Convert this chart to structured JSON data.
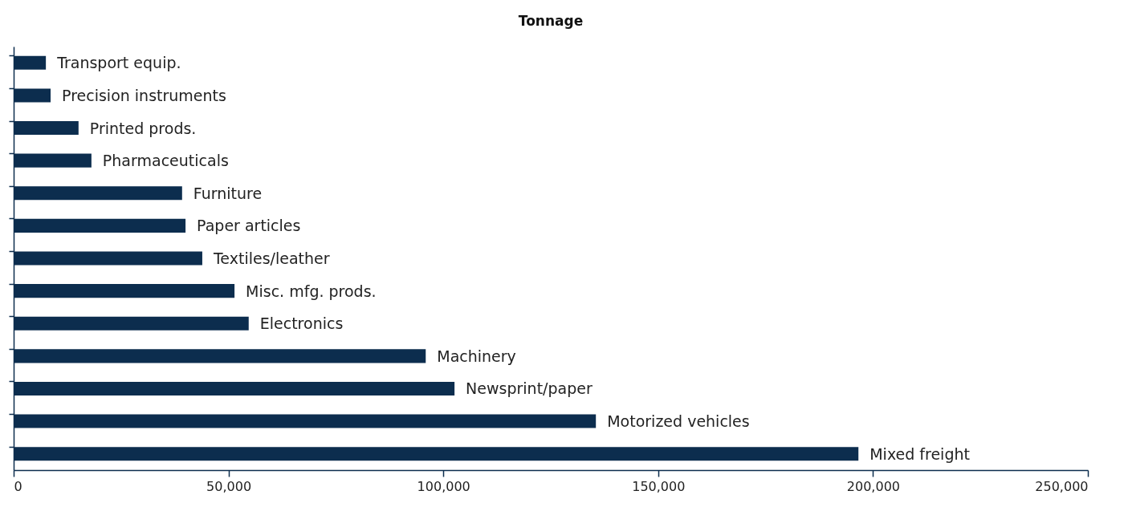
{
  "chart_data": {
    "type": "bar",
    "orientation": "horizontal",
    "title": "Tonnage",
    "categories": [
      "Transport equip.",
      "Precision instruments",
      "Printed prods.",
      "Pharmaceuticals",
      "Furniture",
      "Paper articles",
      "Textiles/leather",
      "Misc. mfg. prods.",
      "Electronics",
      "Machinery",
      "Newsprint/paper",
      "Motorized vehicles",
      "Mixed freight"
    ],
    "values": [
      7500,
      8600,
      15100,
      18100,
      39200,
      40000,
      43900,
      51400,
      54700,
      95900,
      102600,
      135500,
      196600
    ],
    "color": "#0c2d4e",
    "xlim": [
      0,
      250000
    ],
    "xticks": [
      0,
      {
        "value": 50000,
        "label": "50,000"
      },
      {
        "value": 100000,
        "label": "100,000"
      },
      {
        "value": 150000,
        "label": "150,000"
      },
      {
        "value": 200000,
        "label": "200,000"
      },
      {
        "value": 250000,
        "label": "250,000"
      }
    ],
    "grid": false,
    "tick_labels": "x"
  }
}
